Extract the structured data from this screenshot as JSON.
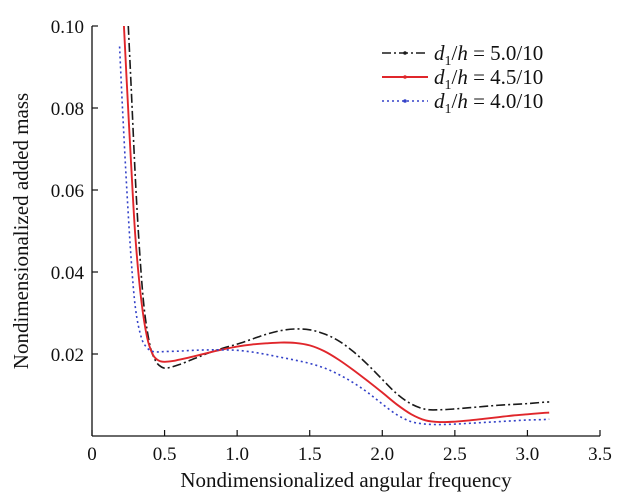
{
  "chart_data": {
    "type": "line",
    "title": "",
    "xlabel": "Nondimensionalized angular frequency",
    "ylabel": "Nondimensionalized added mass",
    "xlim": [
      0,
      3.5
    ],
    "ylim": [
      0,
      0.1
    ],
    "x_ticks": [
      {
        "value": 0,
        "label": "0"
      },
      {
        "value": 0.5,
        "label": "0.5"
      },
      {
        "value": 1.0,
        "label": "1.0"
      },
      {
        "value": 1.5,
        "label": "1.5"
      },
      {
        "value": 2.0,
        "label": "2.0"
      },
      {
        "value": 2.5,
        "label": "2.5"
      },
      {
        "value": 3.0,
        "label": "3.0"
      },
      {
        "value": 3.5,
        "label": "3.5"
      }
    ],
    "y_ticks": [
      {
        "value": 0.02,
        "label": "0.02"
      },
      {
        "value": 0.04,
        "label": "0.04"
      },
      {
        "value": 0.06,
        "label": "0.06"
      },
      {
        "value": 0.08,
        "label": "0.08"
      },
      {
        "value": 0.1,
        "label": "0.10"
      }
    ],
    "grid": false,
    "legend_position": "top-right",
    "series": [
      {
        "name": "d1/h=5.0/10",
        "legend": {
          "var": "d",
          "sub": "1",
          "rest": "/h = 5.0/10"
        },
        "color": "#1a1a1a",
        "dash": "dash-dot",
        "x": [
          0.25,
          0.27,
          0.3,
          0.33,
          0.36,
          0.4,
          0.44,
          0.48,
          0.52,
          0.6,
          0.7,
          0.8,
          0.9,
          1.0,
          1.1,
          1.2,
          1.3,
          1.4,
          1.5,
          1.6,
          1.7,
          1.8,
          1.9,
          2.0,
          2.1,
          2.2,
          2.3,
          2.4,
          2.5,
          2.6,
          2.7,
          2.8,
          2.9,
          3.0,
          3.1,
          3.15
        ],
        "y": [
          0.1,
          0.085,
          0.062,
          0.044,
          0.031,
          0.022,
          0.0182,
          0.0168,
          0.0166,
          0.0174,
          0.0188,
          0.0202,
          0.0214,
          0.0224,
          0.0236,
          0.0248,
          0.0257,
          0.0261,
          0.0259,
          0.0249,
          0.0232,
          0.0206,
          0.0174,
          0.0138,
          0.0103,
          0.0078,
          0.0065,
          0.0064,
          0.0066,
          0.0069,
          0.0072,
          0.0075,
          0.0077,
          0.0079,
          0.0082,
          0.0083
        ]
      },
      {
        "name": "d1/h=4.5/10",
        "legend": {
          "var": "d",
          "sub": "1",
          "rest": "/h = 4.5/10"
        },
        "color": "#e0262b",
        "dash": "solid",
        "x": [
          0.22,
          0.24,
          0.27,
          0.3,
          0.34,
          0.38,
          0.42,
          0.46,
          0.5,
          0.56,
          0.6,
          0.7,
          0.8,
          0.9,
          1.0,
          1.1,
          1.2,
          1.3,
          1.4,
          1.5,
          1.6,
          1.7,
          1.8,
          1.9,
          2.0,
          2.1,
          2.2,
          2.3,
          2.4,
          2.5,
          2.6,
          2.7,
          2.8,
          2.9,
          3.0,
          3.1,
          3.15
        ],
        "y": [
          0.1,
          0.086,
          0.066,
          0.048,
          0.033,
          0.024,
          0.0198,
          0.0184,
          0.0181,
          0.0183,
          0.0186,
          0.0194,
          0.0203,
          0.0211,
          0.0218,
          0.0223,
          0.0226,
          0.0228,
          0.0227,
          0.0221,
          0.0207,
          0.0186,
          0.0161,
          0.0134,
          0.0106,
          0.0077,
          0.0053,
          0.0038,
          0.0034,
          0.0035,
          0.0038,
          0.0042,
          0.0046,
          0.005,
          0.0053,
          0.0056,
          0.0057
        ]
      },
      {
        "name": "d1/h=4.0/10",
        "legend": {
          "var": "d",
          "sub": "1",
          "rest": "/h = 4.0/10"
        },
        "color": "#3341c8",
        "dash": "dotted",
        "x": [
          0.19,
          0.21,
          0.24,
          0.27,
          0.3,
          0.34,
          0.38,
          0.42,
          0.46,
          0.5,
          0.6,
          0.7,
          0.8,
          0.9,
          1.0,
          1.1,
          1.2,
          1.3,
          1.4,
          1.5,
          1.6,
          1.7,
          1.8,
          1.9,
          2.0,
          2.1,
          2.2,
          2.3,
          2.4,
          2.5,
          2.6,
          2.7,
          2.8,
          2.9,
          3.0,
          3.1,
          3.15
        ],
        "y": [
          0.095,
          0.08,
          0.06,
          0.043,
          0.031,
          0.024,
          0.0215,
          0.0206,
          0.0205,
          0.0206,
          0.0207,
          0.0209,
          0.021,
          0.021,
          0.0209,
          0.0205,
          0.0199,
          0.0192,
          0.0185,
          0.0177,
          0.0166,
          0.015,
          0.013,
          0.0106,
          0.0078,
          0.0052,
          0.0035,
          0.0029,
          0.0028,
          0.0029,
          0.0031,
          0.0033,
          0.0035,
          0.0037,
          0.0039,
          0.004,
          0.0041
        ]
      }
    ]
  }
}
